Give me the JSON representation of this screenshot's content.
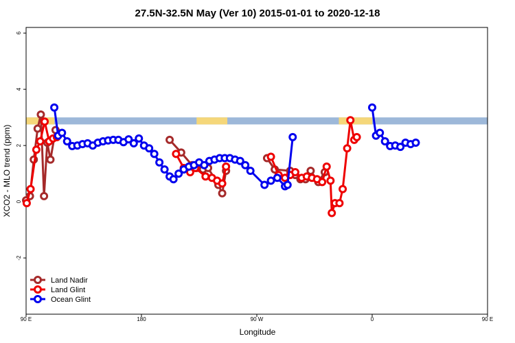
{
  "chart_data": {
    "type": "line",
    "title": "27.5N-32.5N May (Ver 10)   2015-01-01 to 2020-12-18",
    "xlabel": "Longitude",
    "ylabel": "XCO2 - MLO trend (ppm)",
    "xlim": [
      90,
      450
    ],
    "ylim": [
      -4,
      6.2
    ],
    "x_ticks": [
      {
        "value": 90,
        "label": "90 E"
      },
      {
        "value": 180,
        "label": "180"
      },
      {
        "value": 270,
        "label": "90 W"
      },
      {
        "value": 360,
        "label": "0"
      },
      {
        "value": 450,
        "label": "90 E"
      },
      {
        "value": 540,
        "label": "180"
      }
    ],
    "y_ticks": [
      {
        "value": -2,
        "label": "-2"
      },
      {
        "value": 0,
        "label": "0"
      },
      {
        "value": 2,
        "label": "2"
      },
      {
        "value": 4,
        "label": "4"
      },
      {
        "value": 6,
        "label": "6"
      }
    ],
    "x_scale_note": "Longitude axis wraps; 90E appears twice",
    "legend_position": "bottom-left",
    "surface_band": {
      "y_range": [
        2.75,
        3.0
      ],
      "colors": {
        "land": "#f5d77a",
        "ocean": "#9db8d9"
      }
    },
    "series": [
      {
        "name": "Land Nadir",
        "color": "#a52a2a",
        "points": [
          [
            90,
            0.05
          ],
          [
            93,
            0.2
          ],
          [
            96,
            1.5
          ],
          [
            99,
            2.6
          ],
          [
            101.5,
            3.1
          ],
          [
            104,
            0.2
          ],
          [
            106.5,
            2.1
          ],
          [
            109,
            1.5
          ],
          [
            113,
            2.55
          ],
          [
            202,
            2.2
          ],
          [
            211,
            1.75
          ],
          [
            219.5,
            1.3
          ],
          [
            223,
            1.2
          ],
          [
            228,
            1.15
          ],
          [
            232,
            1.2
          ],
          [
            240,
            0.6
          ],
          [
            243,
            0.3
          ],
          [
            246,
            1.1
          ],
          [
            278,
            1.55
          ],
          [
            284,
            1.15
          ],
          [
            296,
            1.1
          ],
          [
            300,
            0.95
          ],
          [
            304,
            0.8
          ],
          [
            308,
            0.8
          ],
          [
            312,
            1.1
          ],
          [
            318,
            0.7
          ],
          [
            323,
            1.05
          ]
        ]
      },
      {
        "name": "Land Glint",
        "color": "#ee0000",
        "points": [
          [
            90.5,
            -0.05
          ],
          [
            93.5,
            0.45
          ],
          [
            98,
            1.85
          ],
          [
            101,
            2.15
          ],
          [
            104.5,
            2.85
          ],
          [
            108,
            2.15
          ],
          [
            111,
            2.25
          ],
          [
            114,
            2.3
          ],
          [
            207,
            1.7
          ],
          [
            213,
            1.2
          ],
          [
            218,
            1.05
          ],
          [
            222,
            1.2
          ],
          [
            230,
            0.9
          ],
          [
            235,
            0.85
          ],
          [
            239,
            0.75
          ],
          [
            243,
            0.65
          ],
          [
            246,
            1.25
          ],
          [
            281,
            1.6
          ],
          [
            287,
            0.95
          ],
          [
            292,
            0.85
          ],
          [
            296,
            0.95
          ],
          [
            300,
            1.05
          ],
          [
            305,
            0.85
          ],
          [
            309,
            0.9
          ],
          [
            313,
            0.85
          ],
          [
            317,
            0.8
          ],
          [
            321,
            0.7
          ],
          [
            324.5,
            1.25
          ],
          [
            327.5,
            0.75
          ],
          [
            328.5,
            -0.4
          ],
          [
            331,
            -0.05
          ],
          [
            334.5,
            -0.05
          ],
          [
            337,
            0.45
          ],
          [
            340.5,
            1.9
          ],
          [
            343,
            2.9
          ],
          [
            346,
            2.2
          ],
          [
            348,
            2.3
          ]
        ]
      },
      {
        "name": "Ocean Glint",
        "color": "#0000ee",
        "points": [
          [
            112,
            3.35
          ],
          [
            115,
            2.35
          ],
          [
            118,
            2.45
          ],
          [
            122,
            2.15
          ],
          [
            126,
            1.98
          ],
          [
            130,
            2.0
          ],
          [
            134,
            2.05
          ],
          [
            138,
            2.08
          ],
          [
            142,
            2.0
          ],
          [
            146,
            2.1
          ],
          [
            150,
            2.15
          ],
          [
            154,
            2.18
          ],
          [
            158,
            2.2
          ],
          [
            162,
            2.2
          ],
          [
            166,
            2.12
          ],
          [
            170,
            2.22
          ],
          [
            174,
            2.08
          ],
          [
            178,
            2.25
          ],
          [
            182,
            2.0
          ],
          [
            186,
            1.9
          ],
          [
            190,
            1.7
          ],
          [
            194,
            1.4
          ],
          [
            198,
            1.15
          ],
          [
            202,
            0.9
          ],
          [
            205,
            0.8
          ],
          [
            209,
            1.0
          ],
          [
            213,
            1.15
          ],
          [
            217,
            1.25
          ],
          [
            221,
            1.3
          ],
          [
            225,
            1.4
          ],
          [
            229,
            1.3
          ],
          [
            233,
            1.45
          ],
          [
            237,
            1.5
          ],
          [
            241,
            1.55
          ],
          [
            245,
            1.55
          ],
          [
            249,
            1.55
          ],
          [
            253,
            1.5
          ],
          [
            257,
            1.45
          ],
          [
            261,
            1.3
          ],
          [
            265,
            1.1
          ],
          [
            276,
            0.6
          ],
          [
            281,
            0.75
          ],
          [
            286,
            0.85
          ],
          [
            292,
            0.55
          ],
          [
            294,
            0.6
          ],
          [
            298,
            2.3
          ],
          [
            360,
            3.35
          ],
          [
            363,
            2.35
          ],
          [
            366,
            2.45
          ],
          [
            370,
            2.15
          ],
          [
            374,
            1.98
          ],
          [
            378,
            2.0
          ],
          [
            382,
            1.95
          ],
          [
            386,
            2.1
          ],
          [
            390,
            2.05
          ],
          [
            394,
            2.1
          ]
        ]
      }
    ]
  }
}
